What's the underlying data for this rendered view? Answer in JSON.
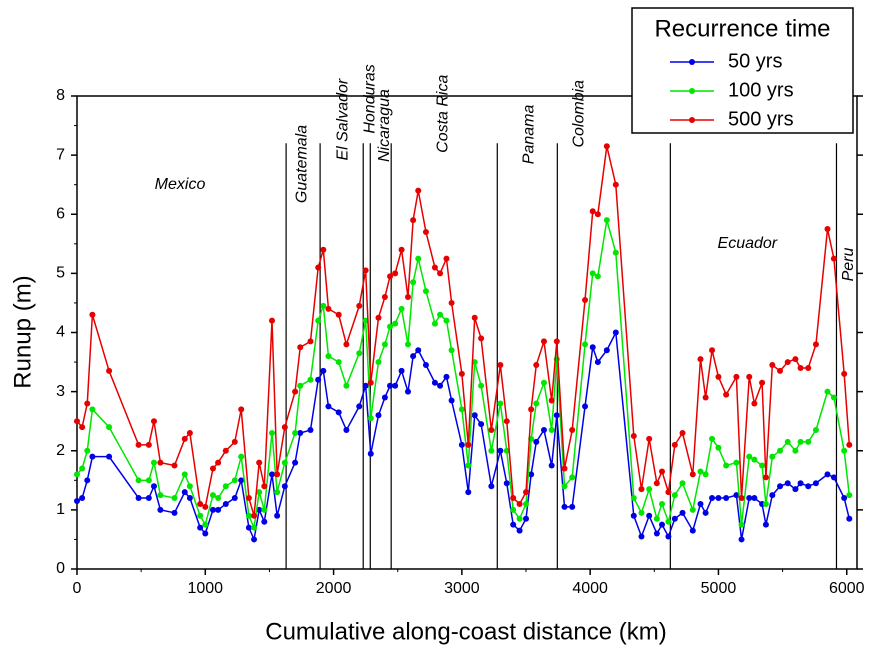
{
  "chart_data": {
    "type": "line",
    "xlabel": "Cumulative along-coast distance (km)",
    "ylabel": "Runup (m)",
    "legend_title": "Recurrence time",
    "legend": "upper right",
    "xlim": [
      0,
      6080
    ],
    "xticks": [
      0,
      1000,
      2000,
      3000,
      4000,
      5000,
      6000
    ],
    "ylim": [
      0,
      8
    ],
    "yticks": [
      0,
      1,
      2,
      3,
      4,
      5,
      6,
      7,
      8
    ],
    "x": [
      0,
      40,
      80,
      120,
      250,
      480,
      560,
      600,
      650,
      760,
      840,
      880,
      960,
      1000,
      1060,
      1100,
      1160,
      1230,
      1280,
      1340,
      1380,
      1420,
      1460,
      1520,
      1560,
      1620,
      1700,
      1740,
      1820,
      1880,
      1920,
      1960,
      2040,
      2100,
      2200,
      2250,
      2290,
      2350,
      2400,
      2440,
      2480,
      2530,
      2580,
      2620,
      2660,
      2720,
      2790,
      2830,
      2880,
      2920,
      3000,
      3050,
      3100,
      3150,
      3230,
      3300,
      3350,
      3400,
      3450,
      3500,
      3540,
      3580,
      3640,
      3700,
      3740,
      3800,
      3860,
      3960,
      4020,
      4060,
      4130,
      4200,
      4340,
      4400,
      4460,
      4520,
      4560,
      4610,
      4660,
      4720,
      4800,
      4860,
      4900,
      4950,
      5000,
      5060,
      5140,
      5180,
      5240,
      5280,
      5340,
      5370,
      5420,
      5480,
      5540,
      5600,
      5640,
      5700,
      5760,
      5850,
      5900,
      5980,
      6020
    ],
    "series": [
      {
        "name": "50 yrs",
        "color": "#0000e6",
        "values": [
          1.15,
          1.2,
          1.5,
          1.9,
          1.9,
          1.2,
          1.2,
          1.4,
          1.0,
          0.95,
          1.3,
          1.2,
          0.7,
          0.6,
          1.0,
          1.0,
          1.1,
          1.2,
          1.5,
          0.7,
          0.5,
          1.0,
          0.8,
          1.6,
          0.9,
          1.4,
          1.8,
          2.3,
          2.35,
          3.2,
          3.35,
          2.75,
          2.65,
          2.35,
          2.75,
          3.1,
          1.95,
          2.6,
          2.9,
          3.1,
          3.1,
          3.35,
          3.0,
          3.6,
          3.7,
          3.45,
          3.15,
          3.1,
          3.25,
          2.85,
          2.1,
          1.3,
          2.6,
          2.45,
          1.4,
          2.0,
          1.45,
          0.75,
          0.65,
          0.85,
          1.6,
          2.15,
          2.35,
          1.75,
          2.6,
          1.05,
          1.05,
          2.75,
          3.75,
          3.5,
          3.7,
          4.0,
          0.9,
          0.55,
          0.9,
          0.6,
          0.75,
          0.55,
          0.85,
          0.95,
          0.65,
          1.1,
          0.95,
          1.2,
          1.2,
          1.2,
          1.25,
          0.5,
          1.2,
          1.2,
          1.1,
          0.75,
          1.25,
          1.4,
          1.45,
          1.35,
          1.45,
          1.4,
          1.45,
          1.6,
          1.55,
          1.2,
          0.85
        ]
      },
      {
        "name": "100 yrs",
        "color": "#00e600",
        "values": [
          1.6,
          1.7,
          2.0,
          2.7,
          2.4,
          1.5,
          1.5,
          1.8,
          1.25,
          1.2,
          1.6,
          1.4,
          0.9,
          0.75,
          1.25,
          1.2,
          1.4,
          1.5,
          1.9,
          0.9,
          0.7,
          1.3,
          1.0,
          2.3,
          1.3,
          1.8,
          2.3,
          3.1,
          3.2,
          4.2,
          4.45,
          3.6,
          3.5,
          3.1,
          3.65,
          4.2,
          2.55,
          3.5,
          3.8,
          4.1,
          4.15,
          4.4,
          3.8,
          4.85,
          5.25,
          4.7,
          4.15,
          4.3,
          4.2,
          3.7,
          2.7,
          1.75,
          3.5,
          3.1,
          2.0,
          2.8,
          2.0,
          1.0,
          0.85,
          1.1,
          2.2,
          2.8,
          3.15,
          2.35,
          3.55,
          1.4,
          1.55,
          3.8,
          5.0,
          4.95,
          5.9,
          5.35,
          1.2,
          0.95,
          1.35,
          0.85,
          1.1,
          0.8,
          1.25,
          1.45,
          1.0,
          1.65,
          1.6,
          2.2,
          2.05,
          1.75,
          1.8,
          0.75,
          1.9,
          1.85,
          1.75,
          1.1,
          1.9,
          2.0,
          2.15,
          2.0,
          2.15,
          2.15,
          2.35,
          3.0,
          2.9,
          2.0,
          1.25
        ]
      },
      {
        "name": "500 yrs",
        "color": "#e60000",
        "values": [
          2.5,
          2.4,
          2.8,
          4.3,
          3.35,
          2.1,
          2.1,
          2.5,
          1.8,
          1.75,
          2.2,
          2.3,
          1.1,
          1.05,
          1.7,
          1.8,
          2.0,
          2.15,
          2.7,
          1.2,
          0.9,
          1.8,
          1.4,
          4.2,
          1.6,
          2.4,
          3.0,
          3.75,
          3.85,
          5.1,
          5.4,
          4.4,
          4.3,
          3.8,
          4.45,
          5.05,
          3.15,
          4.25,
          4.6,
          4.95,
          5.0,
          5.4,
          4.6,
          5.9,
          6.4,
          5.7,
          5.1,
          5.0,
          5.25,
          4.5,
          3.3,
          2.1,
          4.25,
          3.9,
          2.35,
          3.45,
          2.5,
          1.2,
          1.1,
          1.3,
          2.7,
          3.45,
          3.85,
          2.85,
          3.85,
          1.7,
          2.35,
          4.55,
          6.05,
          6.0,
          7.15,
          6.5,
          2.25,
          1.35,
          2.2,
          1.45,
          1.65,
          1.3,
          2.1,
          2.3,
          1.6,
          3.55,
          2.9,
          3.7,
          3.25,
          2.95,
          3.25,
          1.2,
          3.25,
          2.8,
          3.15,
          1.55,
          3.45,
          3.35,
          3.5,
          3.55,
          3.4,
          3.4,
          3.8,
          5.75,
          5.25,
          3.3,
          2.1
        ]
      }
    ],
    "boundaries": [
      1630,
      1895,
      2231,
      2286,
      2449,
      3276,
      3744,
      4625,
      5920
    ],
    "regions": [
      {
        "label": "Mexico",
        "x": 803,
        "y": 6.5
      },
      {
        "label": "Guatemala",
        "x": 1755,
        "y": 6.85,
        "rotate": true
      },
      {
        "label": "El Salvador",
        "x": 2075,
        "y": 7.6,
        "rotate": true
      },
      {
        "label": "Honduras",
        "x": 2285,
        "y": 7.95,
        "rotate": true
      },
      {
        "label": "Nicaragua",
        "x": 2400,
        "y": 7.5,
        "rotate": true
      },
      {
        "label": "Costa Rica",
        "x": 2855,
        "y": 7.7,
        "rotate": true
      },
      {
        "label": "Panama",
        "x": 3525,
        "y": 7.35,
        "rotate": true
      },
      {
        "label": "Colombia",
        "x": 3915,
        "y": 7.7,
        "rotate": true
      },
      {
        "label": "Ecuador",
        "x": 5225,
        "y": 5.5
      },
      {
        "label": "Peru",
        "x": 6015,
        "y": 5.15,
        "rotate": true
      }
    ]
  }
}
